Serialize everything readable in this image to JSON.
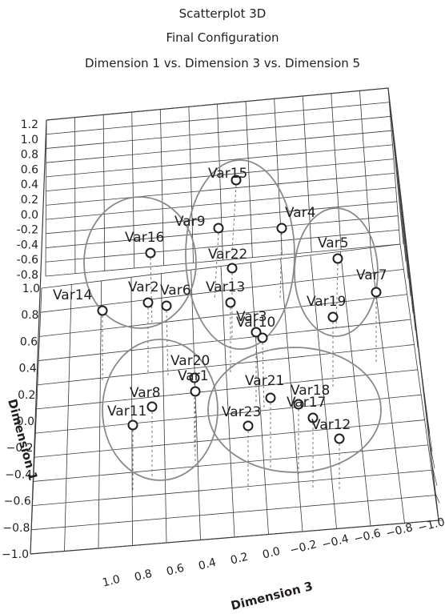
{
  "header": {
    "title": "Scatterplot 3D",
    "subtitle": "Final Configuration",
    "dims": "Dimension 1  vs. Dimension 3  vs. Dimension 5"
  },
  "chart_data": {
    "type": "scatter",
    "axes": {
      "vertical_label": "Dimension 1",
      "front_label": "Dimension 3",
      "depth_label": "",
      "back_tick_labels": [
        "1.2",
        "1.0",
        "0.8",
        "0.6",
        "0.4",
        "0.2",
        "0.0",
        "-0.2",
        "-0.4",
        "-0.6",
        "-0.8"
      ],
      "left_tick_labels": [
        "1.0",
        "0.8",
        "0.6",
        "0.4",
        "0.2",
        "0.0",
        "−0.2",
        "−0.4",
        "−0.6",
        "−0.8",
        "−1.0"
      ],
      "front_tick_labels": [
        "1.0",
        "0.8",
        "0.6",
        "0.4",
        "0.2",
        "0.0",
        "−0.2",
        "−0.4",
        "−0.6",
        "−0.8",
        "−1.0"
      ],
      "grid": true
    },
    "points": [
      {
        "label": "Var15"
      },
      {
        "label": "Var9"
      },
      {
        "label": "Var4"
      },
      {
        "label": "Var16"
      },
      {
        "label": "Var22"
      },
      {
        "label": "Var5"
      },
      {
        "label": "Var7"
      },
      {
        "label": "Var14"
      },
      {
        "label": "Var2"
      },
      {
        "label": "Var6"
      },
      {
        "label": "Var13"
      },
      {
        "label": "Var3"
      },
      {
        "label": "Var10"
      },
      {
        "label": "Var19"
      },
      {
        "label": "Var20"
      },
      {
        "label": "Var1"
      },
      {
        "label": "Var8"
      },
      {
        "label": "Var11"
      },
      {
        "label": "Var21"
      },
      {
        "label": "Var18"
      },
      {
        "label": "Var23"
      },
      {
        "label": "Var17"
      },
      {
        "label": "Var12"
      }
    ],
    "clusters": 6,
    "colors": {
      "ink": "#231f20",
      "grid": "#3a3a3a",
      "cluster": "#8a8a8a",
      "drop": "#777777"
    }
  }
}
